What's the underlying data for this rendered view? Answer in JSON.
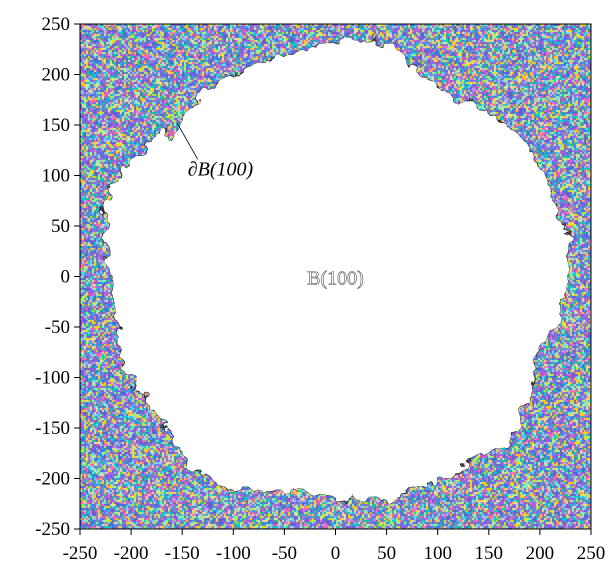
{
  "chart_data": {
    "type": "heatmap",
    "title": "",
    "xlabel": "",
    "ylabel": "",
    "xlim": [
      -250,
      250
    ],
    "ylim": [
      -250,
      250
    ],
    "x_ticks": [
      -250,
      -200,
      -150,
      -100,
      -50,
      0,
      50,
      100,
      150,
      200,
      250
    ],
    "y_ticks": [
      250,
      200,
      150,
      100,
      50,
      0,
      -50,
      -100,
      -150,
      -200,
      -250
    ],
    "x_tick_labels": [
      "-250",
      "-200",
      "-150",
      "-100",
      "-50",
      "0",
      "50",
      "100",
      "150",
      "200",
      "250"
    ],
    "y_tick_labels": [
      "250",
      "200",
      "150",
      "100",
      "50",
      "0",
      "-50",
      "-100",
      "-150",
      "-200",
      "-250"
    ],
    "grid": false,
    "region": {
      "label": "B(100)",
      "description_shape": "roughly circular white cluster centered near origin",
      "approx_radius": 225,
      "center": [
        0,
        0
      ]
    },
    "annotations": [
      {
        "text": "∂B(100)",
        "x": -125,
        "y": 120,
        "points_to": [
          -155,
          152
        ]
      },
      {
        "text": "B(100)",
        "x": 0,
        "y": -8
      }
    ],
    "noise_colors": [
      "#6a5acd",
      "#7b68ee",
      "#ff69b4",
      "#ffd700",
      "#00ced1",
      "#87cefa",
      "#98fb98",
      "#ba55d3",
      "#4169e1",
      "#f0e68c",
      "#20b2aa",
      "#9370db"
    ]
  }
}
